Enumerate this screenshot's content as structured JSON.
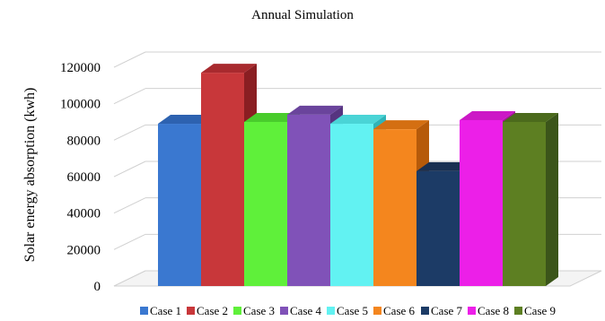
{
  "chart_data": {
    "type": "bar",
    "title": "Annual Simulation",
    "xlabel": "",
    "ylabel": "Solar energy absorption (kwh)",
    "ylim": [
      0,
      120000
    ],
    "yticks": [
      "0",
      "20000",
      "40000",
      "60000",
      "80000",
      "100000",
      "120000"
    ],
    "grid": true,
    "legend_position": "bottom",
    "categories": [
      "Case 1",
      "Case 2",
      "Case 3",
      "Case 4",
      "Case 5",
      "Case 6",
      "Case 7",
      "Case 8",
      "Case 9"
    ],
    "values": [
      89000,
      117000,
      90000,
      94000,
      89000,
      86000,
      63000,
      91000,
      90000
    ],
    "colors": [
      "#3a78d0",
      "#c8373a",
      "#5ff03a",
      "#8052b8",
      "#62f2f2",
      "#f4861e",
      "#1c3b66",
      "#ec1fe8",
      "#5d7f22"
    ],
    "side_colors": [
      "#24509a",
      "#8a1e22",
      "#37a81c",
      "#563480",
      "#2fb4b8",
      "#b65a0a",
      "#10233f",
      "#a8109e",
      "#3b551a"
    ],
    "top_colors": [
      "#2d62b0",
      "#a82a2e",
      "#49cc2c",
      "#6a449c",
      "#4ad4d6",
      "#d46f12",
      "#182f52",
      "#cc18c6",
      "#4b6a1c"
    ]
  }
}
